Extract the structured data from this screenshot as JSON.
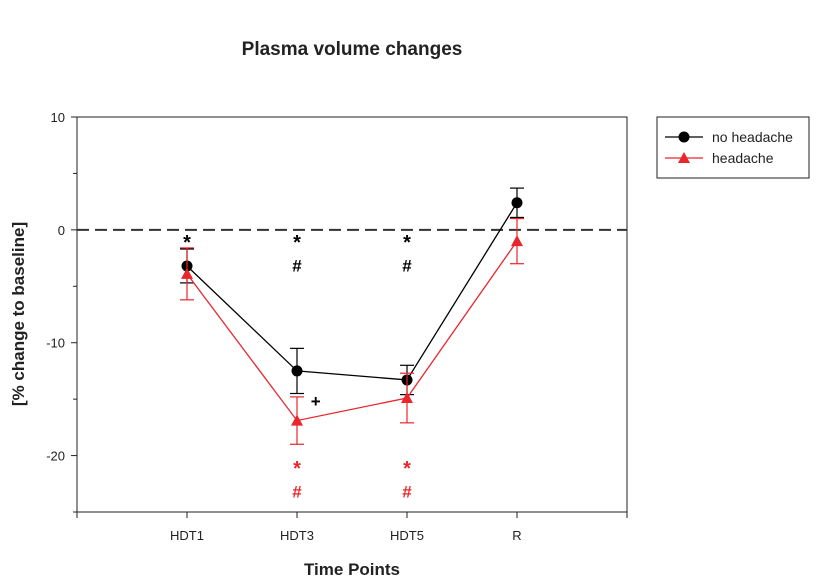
{
  "chart_data": {
    "type": "line",
    "title": "Plasma volume changes",
    "xlabel": "Time Points",
    "ylabel": "[% change to baseline]",
    "categories": [
      "HDT1",
      "HDT3",
      "HDT5",
      "R"
    ],
    "ylim": [
      -25,
      10
    ],
    "yticks": [
      10,
      0,
      -10,
      -20
    ],
    "reference_line": 0,
    "grid": false,
    "legend_position": "top-right outside",
    "series": [
      {
        "name": "no headache",
        "color": "#000000",
        "marker": "circle",
        "values": [
          -3.2,
          -12.5,
          -13.3,
          2.4
        ],
        "errors": [
          1.5,
          2.0,
          1.3,
          1.3
        ]
      },
      {
        "name": "headache",
        "color": "#e8262b",
        "marker": "triangle",
        "values": [
          -3.9,
          -16.9,
          -14.9,
          -1.0
        ],
        "errors": [
          2.3,
          2.1,
          2.2,
          2.0
        ]
      }
    ],
    "annotations": [
      {
        "category": "HDT1",
        "text": "*",
        "color": "#000000",
        "y": -1
      },
      {
        "category": "HDT3",
        "text": "*",
        "color": "#000000",
        "y": -1
      },
      {
        "category": "HDT3",
        "text": "#",
        "color": "#000000",
        "y": -3
      },
      {
        "category": "HDT5",
        "text": "*",
        "color": "#000000",
        "y": -1
      },
      {
        "category": "HDT5",
        "text": "#",
        "color": "#000000",
        "y": -3
      },
      {
        "category": "HDT3",
        "text": "+",
        "color": "#000000",
        "y": -15,
        "dx": 0.17
      },
      {
        "category": "HDT3",
        "text": "*",
        "color": "#e8262b",
        "y": -21
      },
      {
        "category": "HDT3",
        "text": "#",
        "color": "#e8262b",
        "y": -23
      },
      {
        "category": "HDT5",
        "text": "*",
        "color": "#e8262b",
        "y": -21
      },
      {
        "category": "HDT5",
        "text": "#",
        "color": "#e8262b",
        "y": -23
      }
    ]
  }
}
